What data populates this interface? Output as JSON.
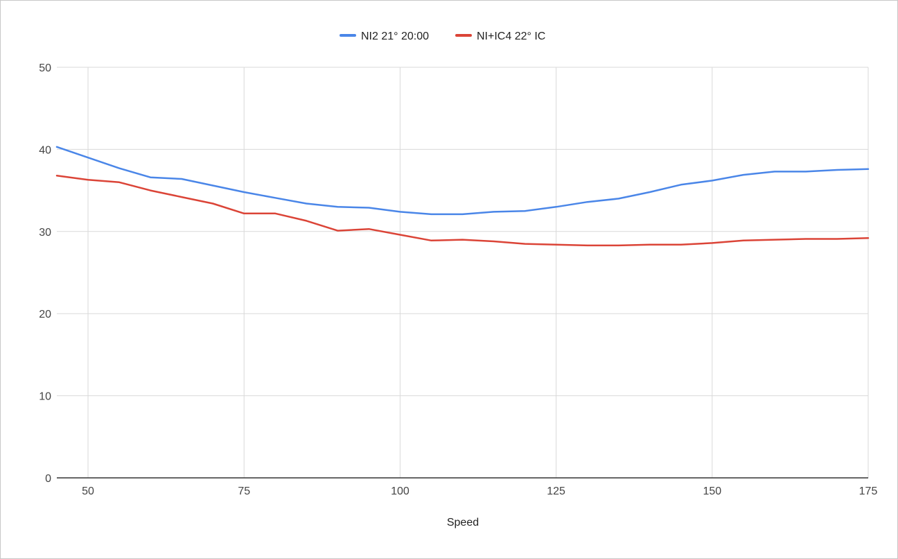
{
  "chart_data": {
    "type": "line",
    "title": "",
    "xlabel": "Speed",
    "ylabel": "",
    "xlim": [
      45,
      175
    ],
    "ylim": [
      0,
      50
    ],
    "x_ticks": [
      50,
      75,
      100,
      125,
      150,
      175
    ],
    "y_ticks": [
      0,
      10,
      20,
      30,
      40,
      50
    ],
    "grid": true,
    "legend_position": "top",
    "x": [
      45,
      50,
      55,
      60,
      65,
      70,
      75,
      80,
      85,
      90,
      95,
      100,
      105,
      110,
      115,
      120,
      125,
      130,
      135,
      140,
      145,
      150,
      155,
      160,
      165,
      170,
      175
    ],
    "series": [
      {
        "name": "NI2 21° 20:00",
        "color": "#4a86e8",
        "values": [
          40.3,
          39.0,
          37.7,
          36.6,
          36.4,
          35.6,
          34.8,
          34.1,
          33.4,
          33.0,
          32.9,
          32.4,
          32.1,
          32.1,
          32.4,
          32.5,
          33.0,
          33.6,
          34.0,
          34.8,
          35.7,
          36.2,
          36.9,
          37.3,
          37.3,
          37.5,
          37.6
        ]
      },
      {
        "name": "NI+IC4 22° IC",
        "color": "#db4437",
        "values": [
          36.8,
          36.3,
          36.0,
          35.0,
          34.2,
          33.4,
          32.2,
          32.2,
          31.3,
          30.1,
          30.3,
          29.6,
          28.9,
          29.0,
          28.8,
          28.5,
          28.4,
          28.3,
          28.3,
          28.4,
          28.4,
          28.6,
          28.9,
          29.0,
          29.1,
          29.1,
          29.2
        ]
      }
    ]
  }
}
